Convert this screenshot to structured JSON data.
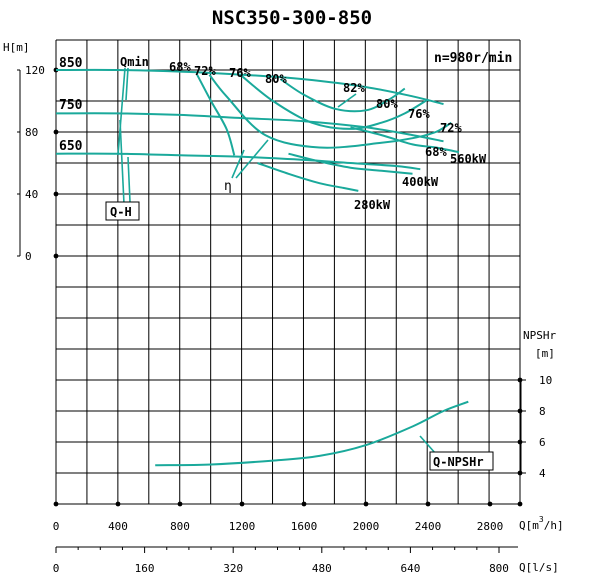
{
  "chart_data": {
    "type": "line",
    "title": "NSC350-300-850",
    "speed_label": "n=980r/min",
    "x_axis": {
      "label": "Q[m³/h]",
      "label_main": "Q[m",
      "label_sup": "3",
      "label_tail": "/h]",
      "range": [
        0,
        3000
      ],
      "ticks": [
        "0",
        "400",
        "800",
        "1200",
        "1600",
        "2000",
        "2400",
        "2800"
      ]
    },
    "x_axis_secondary": {
      "label": "Q[l/s]",
      "range": [
        0,
        833
      ],
      "ticks": [
        "0",
        "160",
        "320",
        "480",
        "640",
        "800"
      ]
    },
    "y_axis_head": {
      "unit_label": "H[m]",
      "range": [
        0,
        120
      ],
      "ticks": [
        "0",
        "40",
        "80",
        "120"
      ]
    },
    "y_axis_npsh": {
      "label_line1": "NPSHr",
      "label_line2": "[m]",
      "range": [
        4,
        10
      ],
      "ticks": [
        "4",
        "6",
        "8",
        "10"
      ]
    },
    "labels": {
      "qmin": "Qmin",
      "qh": "Q-H",
      "eta": "η",
      "qnpsh": "Q-NPSHr"
    },
    "head_curves": [
      {
        "name": "850",
        "points": [
          [
            0,
            120
          ],
          [
            400,
            120
          ],
          [
            800,
            119
          ],
          [
            1200,
            117
          ],
          [
            1600,
            114
          ],
          [
            2000,
            109
          ],
          [
            2300,
            103
          ],
          [
            2500,
            98
          ]
        ]
      },
      {
        "name": "750",
        "points": [
          [
            0,
            92
          ],
          [
            400,
            92
          ],
          [
            800,
            91
          ],
          [
            1200,
            89
          ],
          [
            1600,
            87
          ],
          [
            2000,
            83
          ],
          [
            2300,
            78
          ],
          [
            2500,
            74
          ]
        ]
      },
      {
        "name": "650",
        "points": [
          [
            0,
            66
          ],
          [
            400,
            66
          ],
          [
            800,
            65
          ],
          [
            1200,
            64
          ],
          [
            1600,
            62
          ],
          [
            1900,
            60
          ],
          [
            2200,
            58
          ],
          [
            2350,
            56
          ]
        ]
      }
    ],
    "power_curves": [
      {
        "name": "560kW",
        "points": [
          [
            1900,
            83
          ],
          [
            2100,
            78
          ],
          [
            2300,
            72
          ],
          [
            2450,
            70
          ],
          [
            2600,
            67
          ]
        ]
      },
      {
        "name": "400kW",
        "points": [
          [
            1500,
            66
          ],
          [
            1700,
            61
          ],
          [
            1900,
            57
          ],
          [
            2100,
            55
          ],
          [
            2300,
            53
          ]
        ]
      },
      {
        "name": "280kW",
        "points": [
          [
            1300,
            60
          ],
          [
            1500,
            53
          ],
          [
            1700,
            47
          ],
          [
            1850,
            44
          ],
          [
            1950,
            42
          ]
        ]
      }
    ],
    "efficiency_curves": [
      {
        "name": "68%",
        "points": [
          [
            910,
            117
          ],
          [
            1000,
            100
          ],
          [
            1100,
            82
          ],
          [
            1150,
            65
          ]
        ]
      },
      {
        "name": "72%",
        "points": [
          [
            990,
            117
          ],
          [
            1100,
            103
          ],
          [
            1350,
            78
          ],
          [
            1700,
            70
          ],
          [
            2100,
            73
          ],
          [
            2300,
            76
          ],
          [
            2450,
            80
          ],
          [
            2550,
            86
          ]
        ]
      },
      {
        "name": "76%",
        "points": [
          [
            1200,
            116
          ],
          [
            1400,
            100
          ],
          [
            1650,
            86
          ],
          [
            1900,
            82
          ],
          [
            2100,
            86
          ],
          [
            2250,
            92
          ],
          [
            2400,
            101
          ]
        ]
      },
      {
        "name": "80%",
        "points": [
          [
            1450,
            114
          ],
          [
            1600,
            104
          ],
          [
            1800,
            95
          ],
          [
            2000,
            94
          ],
          [
            2150,
            101
          ],
          [
            2250,
            108
          ]
        ]
      }
    ],
    "efficiency_labels": [
      "68%",
      "72%",
      "76%",
      "80%",
      "82%",
      "80%",
      "76%",
      "72%",
      "68%"
    ],
    "npsh_curve": {
      "name": "Q-NPSHr",
      "points": [
        [
          640,
          4.5
        ],
        [
          1000,
          4.55
        ],
        [
          1400,
          4.8
        ],
        [
          1700,
          5.1
        ],
        [
          2000,
          5.8
        ],
        [
          2300,
          7.0
        ],
        [
          2500,
          8.0
        ],
        [
          2660,
          8.6
        ]
      ]
    }
  }
}
